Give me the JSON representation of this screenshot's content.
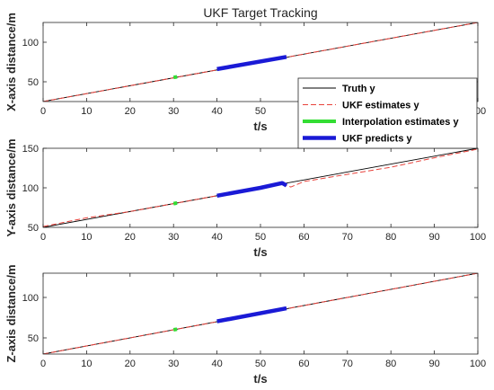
{
  "title": "UKF Target Tracking",
  "colors": {
    "truth": "#000000",
    "ukf_estimates": "#e8423b",
    "interpolation": "#33dd33",
    "ukf_predicts": "#1a1ad6",
    "axes": "#262626"
  },
  "chart_data": [
    {
      "type": "line",
      "title": "UKF Target Tracking",
      "xlabel": "t/s",
      "ylabel": "X-axis distance/m",
      "xlim": [
        0,
        100
      ],
      "ylim": [
        25,
        125
      ],
      "xticks": [
        0,
        10,
        20,
        30,
        40,
        50,
        60,
        70,
        80,
        90,
        100
      ],
      "yticks": [
        50,
        100
      ],
      "legend": {
        "location": "right",
        "entries": [
          "Truth y",
          "UKF estimates y",
          "Interpolation estimates y",
          "UKF predicts y"
        ]
      },
      "series": [
        {
          "name": "Truth y",
          "style": "solid",
          "x": [
            0,
            100
          ],
          "y": [
            25,
            125
          ]
        },
        {
          "name": "UKF estimates y",
          "style": "dashed",
          "x": [
            0,
            20,
            40,
            56,
            80,
            100
          ],
          "y": [
            25,
            45,
            65,
            81,
            105,
            125
          ]
        },
        {
          "name": "Interpolation estimates y",
          "style": "thick",
          "x": [
            30,
            30.8
          ],
          "y": [
            55.5,
            56.2
          ]
        },
        {
          "name": "UKF predicts y",
          "style": "thick",
          "x": [
            40,
            56
          ],
          "y": [
            66,
            81.5
          ]
        }
      ]
    },
    {
      "type": "line",
      "xlabel": "t/s",
      "ylabel": "Y-axis distance/m",
      "xlim": [
        0,
        100
      ],
      "ylim": [
        50,
        150
      ],
      "xticks": [
        0,
        10,
        20,
        30,
        40,
        50,
        60,
        70,
        80,
        90,
        100
      ],
      "yticks": [
        50,
        100,
        150
      ],
      "series": [
        {
          "name": "Truth y",
          "style": "solid",
          "x": [
            0,
            100
          ],
          "y": [
            50,
            150
          ]
        },
        {
          "name": "UKF estimates y",
          "style": "dashed",
          "x": [
            0,
            10,
            20,
            30,
            40,
            50,
            54,
            55.5,
            57,
            60,
            70,
            80,
            90,
            100
          ],
          "y": [
            51,
            62,
            70,
            80,
            90,
            101,
            105,
            104,
            101,
            108,
            117,
            126,
            138,
            149
          ]
        },
        {
          "name": "Interpolation estimates y",
          "style": "thick",
          "x": [
            30,
            30.8
          ],
          "y": [
            80,
            80.8
          ]
        },
        {
          "name": "UKF predicts y",
          "style": "thick",
          "x": [
            40,
            50,
            55,
            56
          ],
          "y": [
            90,
            100,
            106,
            103
          ]
        }
      ]
    },
    {
      "type": "line",
      "xlabel": "t/s",
      "ylabel": "Z-axis distance/m",
      "xlim": [
        0,
        100
      ],
      "ylim": [
        30,
        130
      ],
      "xticks": [
        0,
        10,
        20,
        30,
        40,
        50,
        60,
        70,
        80,
        90,
        100
      ],
      "yticks": [
        50,
        100
      ],
      "series": [
        {
          "name": "Truth y",
          "style": "solid",
          "x": [
            0,
            100
          ],
          "y": [
            30,
            130
          ]
        },
        {
          "name": "UKF estimates y",
          "style": "dashed",
          "x": [
            0,
            30,
            56,
            80,
            100
          ],
          "y": [
            30,
            60,
            86,
            110,
            130
          ]
        },
        {
          "name": "Interpolation estimates y",
          "style": "thick",
          "x": [
            30,
            30.8
          ],
          "y": [
            60,
            60.8
          ]
        },
        {
          "name": "UKF predicts y",
          "style": "thick",
          "x": [
            40,
            56
          ],
          "y": [
            70.5,
            86.5
          ]
        }
      ]
    }
  ]
}
